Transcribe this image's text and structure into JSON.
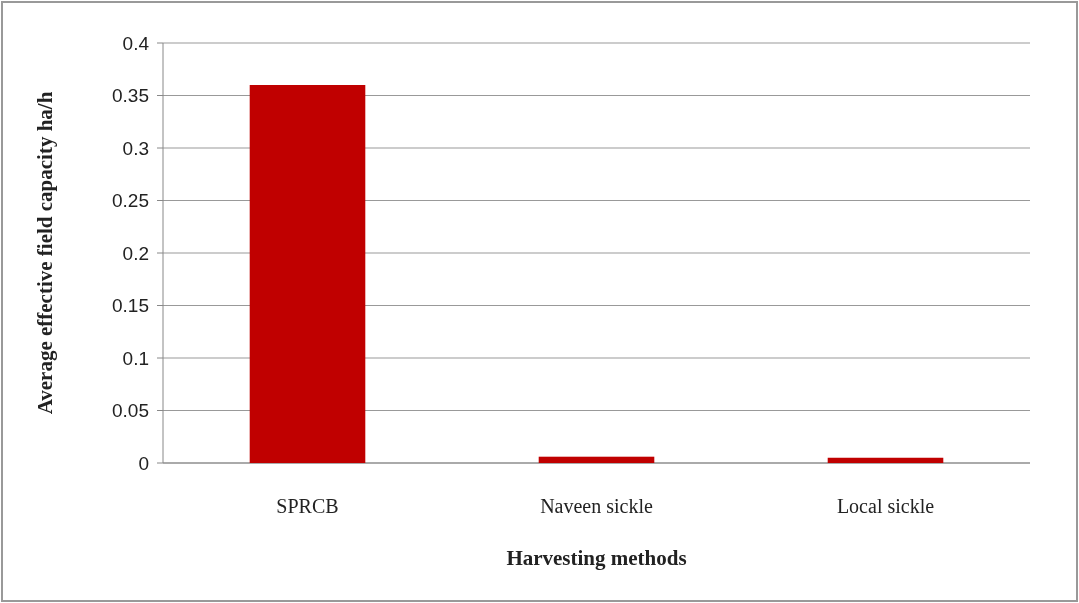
{
  "chart_data": {
    "type": "bar",
    "xlabel": "Harvesting methods",
    "ylabel": "Average effective field capacity ha/h",
    "categories": [
      "SPRCB",
      "Naveen sickle",
      "Local sickle"
    ],
    "values": [
      0.36,
      0.006,
      0.005
    ],
    "color": "#c00000",
    "ylim": [
      0,
      0.4
    ],
    "yticks": [
      0,
      0.05,
      0.1,
      0.15,
      0.2,
      0.25,
      0.3,
      0.35,
      0.4
    ],
    "grid": "y"
  }
}
